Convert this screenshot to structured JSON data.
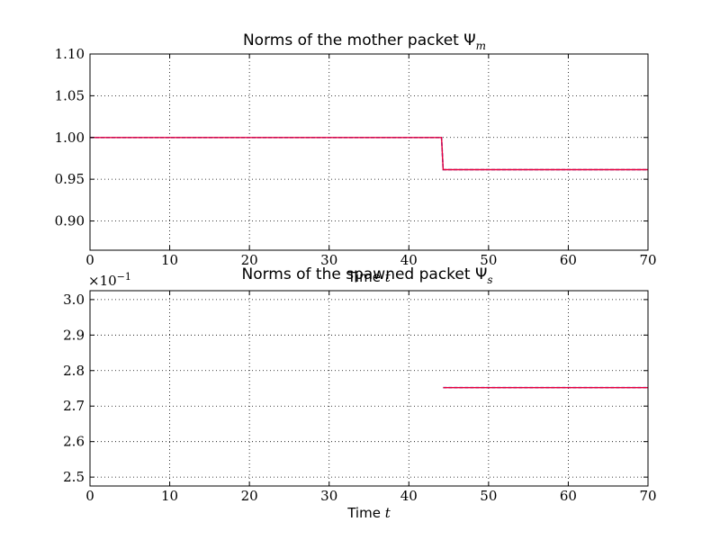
{
  "chart_data": [
    {
      "type": "line",
      "title": "Norms of the mother packet Ψ",
      "title_sub": "m",
      "xlabel": "Time",
      "xlabel_var": "t",
      "ylabel": "",
      "xlim": [
        0,
        70
      ],
      "ylim": [
        0.865,
        1.1
      ],
      "xticks": [
        0,
        10,
        20,
        30,
        40,
        50,
        60,
        70
      ],
      "yticks": [
        0.9,
        0.95,
        1.0,
        1.05,
        1.1
      ],
      "ytick_labels": [
        "0.90",
        "0.95",
        "1.00",
        "1.05",
        "1.10"
      ],
      "grid": true,
      "series": [
        {
          "color": "#1f3fbf",
          "values_x": [
            0,
            44.1,
            44.3,
            70
          ],
          "values_y": [
            1.0,
            1.0,
            0.9615,
            0.9615
          ]
        },
        {
          "color": "#e8003c",
          "values_x": [
            0,
            44.1,
            44.3,
            70
          ],
          "values_y": [
            1.0,
            1.0,
            0.9615,
            0.9615
          ]
        }
      ]
    },
    {
      "type": "line",
      "title": "Norms of the spawned packet Ψ",
      "title_sub": "s",
      "xlabel": "Time",
      "xlabel_var": "t",
      "ylabel": "",
      "xlim": [
        0,
        70
      ],
      "ylim": [
        2.475,
        3.025
      ],
      "xticks": [
        0,
        10,
        20,
        30,
        40,
        50,
        60,
        70
      ],
      "yticks": [
        2.5,
        2.6,
        2.7,
        2.8,
        2.9,
        3.0
      ],
      "ytick_labels": [
        "2.5",
        "2.6",
        "2.7",
        "2.8",
        "2.9",
        "3.0"
      ],
      "offset_base": "×10",
      "offset_exp": "−1",
      "grid": true,
      "series": [
        {
          "color": "#1f3fbf",
          "values_x": [
            44.3,
            70
          ],
          "values_y": [
            2.752,
            2.752
          ]
        },
        {
          "color": "#e8003c",
          "values_x": [
            44.3,
            70
          ],
          "values_y": [
            2.752,
            2.752
          ]
        }
      ]
    }
  ]
}
